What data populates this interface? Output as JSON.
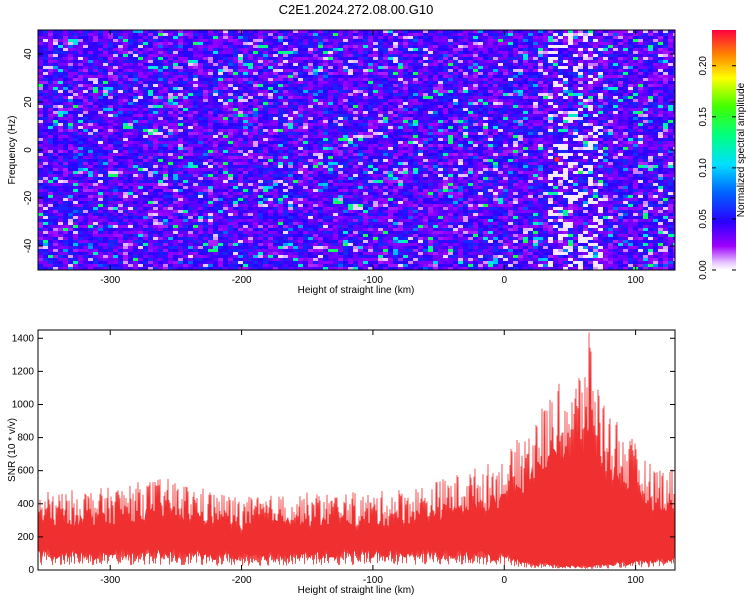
{
  "title": "C2E1.2024.272.08.00.G10",
  "chart_data": [
    {
      "type": "heatmap",
      "xlabel": "Height of straight line (km)",
      "ylabel": "Frequency (Hz)",
      "xlim": [
        -355,
        130
      ],
      "ylim": [
        -50,
        50
      ],
      "xticks": [
        -300,
        -200,
        -100,
        0,
        100
      ],
      "yticks": [
        -40,
        -20,
        0,
        20,
        40
      ],
      "colorbar": {
        "label": "Normalized spectral amplitude",
        "range": [
          0,
          0.235
        ],
        "ticks": [
          "0.00",
          "0.05",
          "0.10",
          "0.15",
          "0.20"
        ],
        "tick_values": [
          0,
          0.05,
          0.1,
          0.15,
          0.2
        ]
      },
      "description_values": {
        "background_level": 0.04,
        "typical_peak": 0.12,
        "max_level": 0.23
      }
    },
    {
      "type": "area",
      "xlabel": "Height of straight line (km)",
      "ylabel": "SNR (10 * v/v)",
      "xlim": [
        -355,
        130
      ],
      "ylim": [
        0,
        1450
      ],
      "xticks": [
        -300,
        -200,
        -100,
        0,
        100
      ],
      "yticks": [
        0,
        200,
        400,
        600,
        800,
        1000,
        1200,
        1400
      ],
      "color": "#f03030",
      "envelope": {
        "x": [
          -355,
          -300,
          -260,
          -200,
          -150,
          -100,
          -60,
          -30,
          0,
          20,
          40,
          55,
          65,
          75,
          90,
          110,
          130
        ],
        "upper": [
          470,
          500,
          560,
          440,
          470,
          470,
          520,
          600,
          680,
          900,
          1120,
          1180,
          1450,
          1050,
          880,
          650,
          620
        ],
        "lower": [
          100,
          90,
          100,
          80,
          90,
          100,
          90,
          90,
          80,
          40,
          30,
          20,
          20,
          30,
          40,
          50,
          60
        ]
      }
    }
  ]
}
